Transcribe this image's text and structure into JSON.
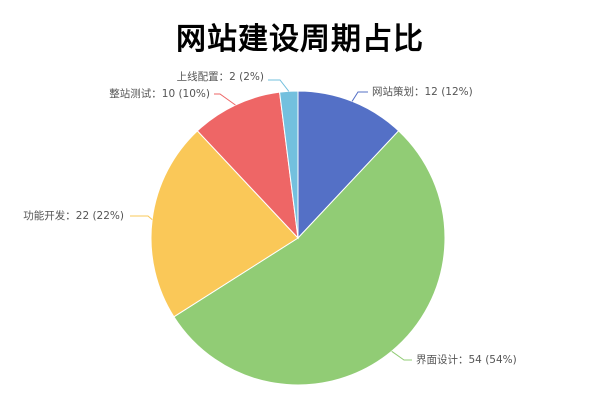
{
  "chart_data": {
    "type": "pie",
    "title": "网站建设周期占比",
    "slices": [
      {
        "name": "网站策划",
        "value": 12,
        "percent": "12%",
        "label": "网站策划：12 (12%)",
        "color": "#5470c6"
      },
      {
        "name": "界面设计",
        "value": 54,
        "percent": "54%",
        "label": "界面设计：54 (54%)",
        "color": "#91cc75"
      },
      {
        "name": "功能开发",
        "value": 22,
        "percent": "22%",
        "label": "功能开发：22 (22%)",
        "color": "#fac858"
      },
      {
        "name": "整站测试",
        "value": 10,
        "percent": "10%",
        "label": "整站测试：10 (10%)",
        "color": "#ee6666"
      },
      {
        "name": "上线配置",
        "value": 2,
        "percent": "2%",
        "label": "上线配置：2 (2%)",
        "color": "#73c0de"
      }
    ]
  }
}
